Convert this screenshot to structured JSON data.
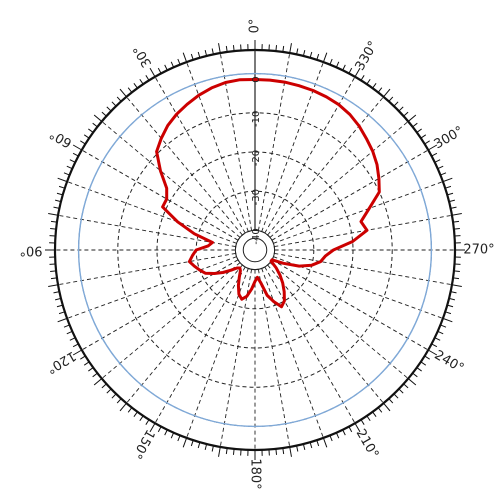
{
  "chart_data": {
    "type": "line",
    "projection": "polar",
    "orientation": "0° at top, angles increase counter-clockwise",
    "angle_ticks": [
      "0°",
      "30°",
      "60°",
      "90°",
      "120°",
      "150°",
      "180°",
      "210°",
      "240°",
      "270°",
      "300°",
      "330°"
    ],
    "radial_ticks": [
      {
        "value": 0,
        "label": "0"
      },
      {
        "value": -10,
        "label": "-10"
      },
      {
        "value": -20,
        "label": "-20"
      },
      {
        "value": -30,
        "label": "-30"
      },
      {
        "value": -40,
        "label": "-40"
      }
    ],
    "radial_range": [
      -45,
      5
    ],
    "reference_level": 0,
    "grid": true,
    "colors": {
      "series": "#cc0000",
      "reference": "#7fa9d8",
      "grid": "#222222",
      "frame": "#111111"
    },
    "series": [
      {
        "theta": [
          0,
          5,
          10,
          15,
          20,
          25,
          30,
          35,
          40,
          45,
          50,
          55,
          60,
          65,
          70,
          75,
          80,
          85,
          90,
          95,
          100,
          105,
          110,
          115,
          120,
          125,
          130,
          135,
          140,
          145,
          150,
          155,
          160,
          165,
          170,
          175,
          180,
          185,
          190,
          195,
          200,
          205,
          210,
          215,
          220,
          225,
          230,
          235,
          240,
          245,
          250,
          255,
          260,
          265,
          270,
          275,
          280,
          285,
          290,
          295,
          300,
          305,
          310,
          315,
          320,
          325,
          330,
          335,
          340,
          345,
          350,
          355
        ],
        "r": [
          -1.5,
          -1.4,
          -1.6,
          -2.2,
          -3.0,
          -4.0,
          -5.0,
          -6.2,
          -7.8,
          -9.5,
          -13.5,
          -17.5,
          -19,
          -19,
          -24,
          -29,
          -34,
          -33,
          -30,
          -29,
          -28,
          -29,
          -30,
          -31,
          -33,
          -35,
          -37,
          -38.5,
          -39,
          -38.5,
          -37,
          -35,
          -33,
          -32,
          -33,
          -35,
          -37,
          -38,
          -36.5,
          -33,
          -31,
          -29,
          -30,
          -32,
          -34,
          -36,
          -38,
          -40,
          -40,
          -37,
          -33,
          -30,
          -28,
          -27,
          -25,
          -20,
          -16,
          -17,
          -14,
          -10,
          -8.5,
          -7.0,
          -5.8,
          -4.8,
          -3.7,
          -2.8,
          -2.2,
          -1.9,
          -1.7,
          -1.6,
          -1.5,
          -1.5
        ]
      }
    ]
  }
}
